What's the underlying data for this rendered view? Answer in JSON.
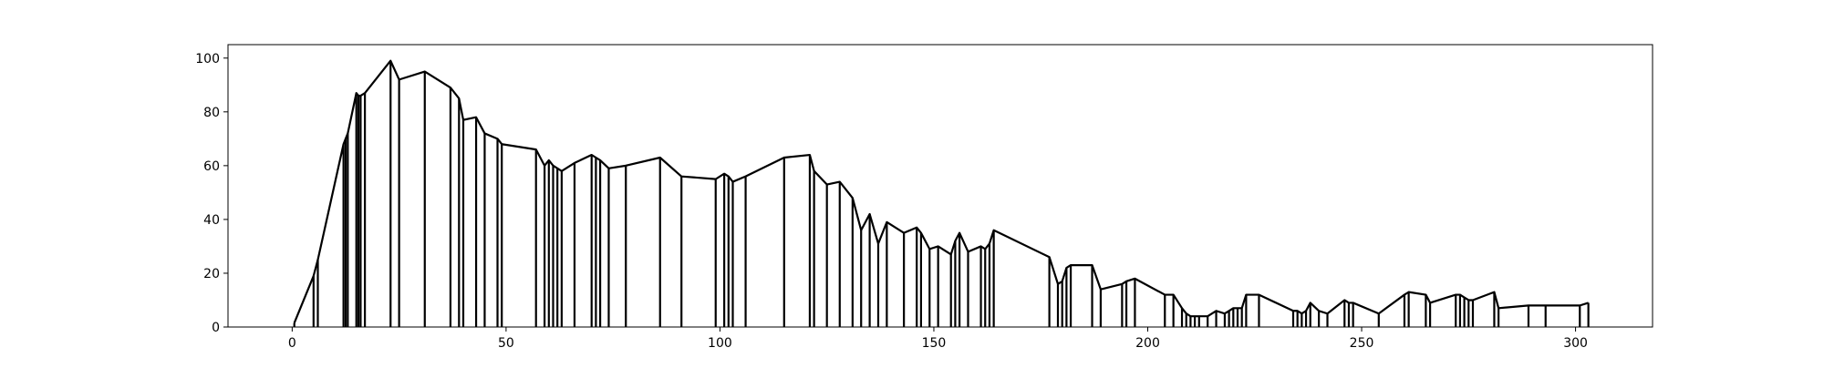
{
  "chart_data": {
    "type": "line",
    "title": "",
    "xlabel": "",
    "ylabel": "",
    "xlim": [
      -15,
      318
    ],
    "ylim": [
      0,
      105
    ],
    "xticks": [
      0,
      50,
      100,
      150,
      200,
      250,
      300
    ],
    "yticks": [
      0,
      20,
      40,
      60,
      80,
      100
    ],
    "grid": false,
    "legend": "none",
    "line_color": "#000000",
    "drop_lines_to_zero": true,
    "series": [
      {
        "x": [
          0.5,
          5,
          6,
          12,
          12.5,
          13,
          15,
          15.5,
          16,
          17,
          23,
          25,
          31,
          37,
          39,
          40,
          43,
          45,
          48,
          49,
          57,
          59,
          60,
          61,
          62,
          63,
          66,
          70,
          71,
          72,
          74,
          78,
          86,
          91,
          99,
          101,
          102,
          103,
          106,
          115,
          121,
          122,
          125,
          128,
          131,
          133,
          135,
          137,
          139,
          143,
          146,
          147,
          149,
          151,
          154,
          155,
          156,
          158,
          161,
          162,
          163,
          164,
          177,
          179,
          180,
          181,
          182,
          187,
          189,
          194,
          195,
          197,
          204,
          206,
          208,
          209,
          210,
          211,
          212,
          214,
          216,
          218,
          219,
          220,
          221,
          222,
          223,
          226,
          234,
          235,
          236,
          237,
          238,
          240,
          242,
          246,
          247,
          248,
          254,
          260,
          261,
          265,
          266,
          272,
          273,
          274,
          275,
          276,
          281,
          282,
          289,
          293,
          301,
          303
        ],
        "y": [
          1.5,
          19,
          25,
          68,
          70,
          72,
          87,
          86,
          86,
          87,
          99,
          92,
          95,
          89,
          85,
          77,
          78,
          72,
          70,
          68,
          66,
          60,
          62,
          60,
          59,
          58,
          61,
          64,
          63,
          62,
          59,
          60,
          63,
          56,
          55,
          57,
          56,
          54,
          56,
          63,
          64,
          58,
          53,
          54,
          48,
          36,
          42,
          31,
          39,
          35,
          37,
          35,
          29,
          30,
          27,
          32,
          35,
          28,
          30,
          29,
          31,
          36,
          26,
          16,
          17,
          22,
          23,
          23,
          14,
          16,
          17,
          18,
          12,
          12,
          7,
          5,
          4,
          4,
          4,
          4,
          6,
          5,
          6,
          7,
          7,
          7,
          12,
          12,
          6,
          6,
          5,
          6,
          9,
          6,
          5,
          10,
          9,
          9,
          5,
          12,
          13,
          12,
          9,
          12,
          12,
          11,
          10,
          10,
          13,
          7,
          8,
          8,
          8,
          9
        ]
      }
    ]
  }
}
